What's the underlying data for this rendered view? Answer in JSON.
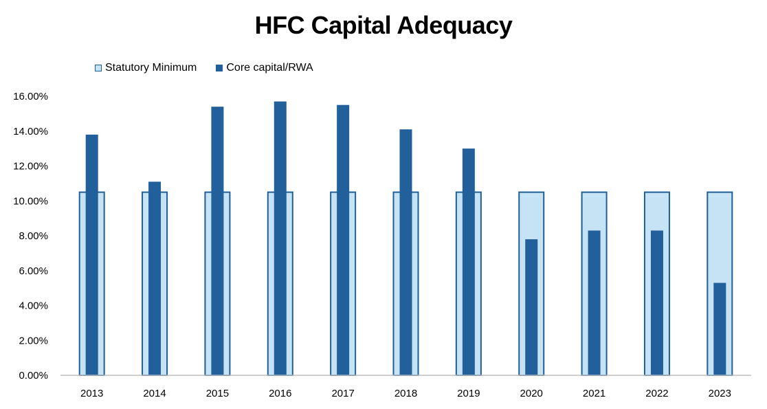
{
  "chart_data": {
    "type": "bar",
    "title": "HFC Capital Adequacy",
    "xlabel": "",
    "ylabel": "",
    "categories": [
      "2013",
      "2014",
      "2015",
      "2016",
      "2017",
      "2018",
      "2019",
      "2020",
      "2021",
      "2022",
      "2023"
    ],
    "series": [
      {
        "name": "Statutory Minimum",
        "values": [
          10.5,
          10.5,
          10.5,
          10.5,
          10.5,
          10.5,
          10.5,
          10.5,
          10.5,
          10.5,
          10.5
        ],
        "fill": "#c5e3f4",
        "stroke": "#1f5f96"
      },
      {
        "name": "Core capital/RWA",
        "values": [
          13.8,
          11.1,
          15.4,
          15.7,
          15.5,
          14.1,
          13.0,
          7.8,
          8.3,
          8.3,
          5.3
        ],
        "fill": "#21609b"
      }
    ],
    "ylim": [
      0,
      16
    ],
    "yticks": [
      "0.00%",
      "2.00%",
      "4.00%",
      "6.00%",
      "8.00%",
      "10.00%",
      "12.00%",
      "14.00%",
      "16.00%"
    ],
    "grid": false,
    "legend_position": "top-left"
  }
}
